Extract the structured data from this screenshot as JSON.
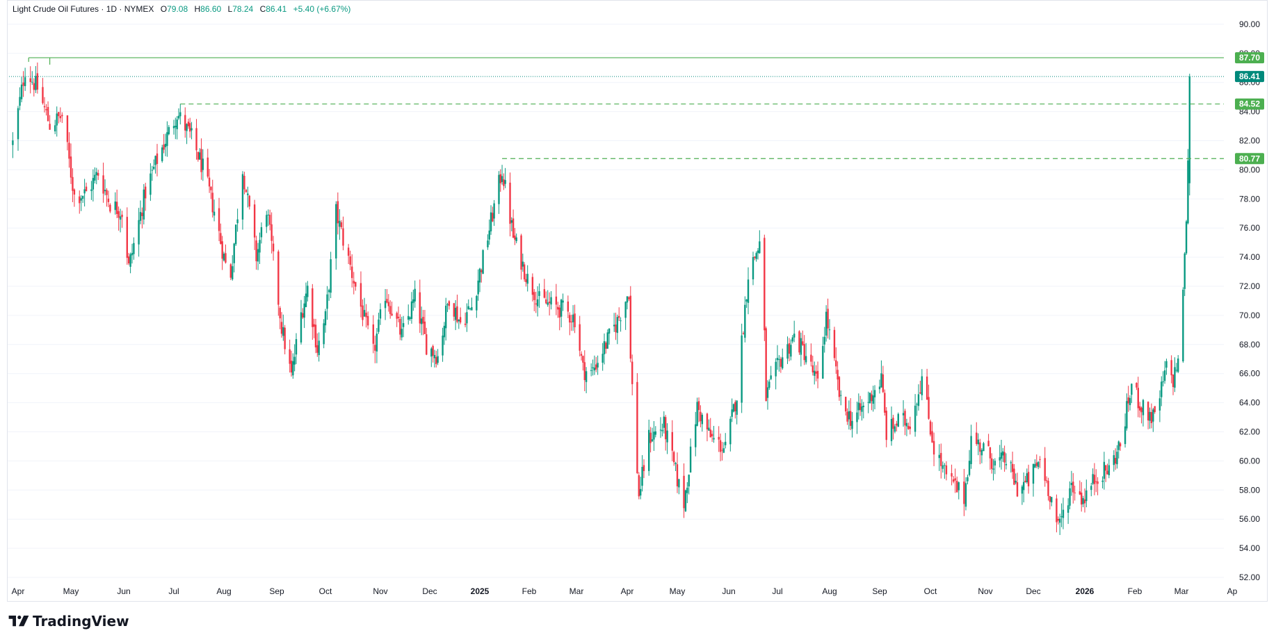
{
  "header": {
    "symbol": "Light Crude Oil Futures · 1D · NYMEX",
    "open_label": "O",
    "open": "79.08",
    "high_label": "H",
    "high": "86.60",
    "low_label": "L",
    "low": "78.24",
    "close_label": "C",
    "close": "86.41",
    "change": "+5.40 (+6.67%)"
  },
  "brand": {
    "name": "TradingView"
  },
  "colors": {
    "up": "#089981",
    "down": "#f23645",
    "level_line": "#4caf50",
    "last_price": "#00897b",
    "grid": "#f0f3fa"
  },
  "chart_data": {
    "type": "candlestick",
    "title": "Light Crude Oil Futures · 1D · NYMEX",
    "ylim": [
      52,
      90
    ],
    "y_ticks": [
      "52.00",
      "54.00",
      "56.00",
      "58.00",
      "60.00",
      "62.00",
      "64.00",
      "66.00",
      "68.00",
      "70.00",
      "72.00",
      "74.00",
      "76.00",
      "78.00",
      "80.00",
      "82.00",
      "84.00",
      "86.00",
      "88.00",
      "90.00"
    ],
    "x_ticks": [
      "Apr",
      "May",
      "Jun",
      "Jul",
      "Aug",
      "Sep",
      "Oct",
      "Nov",
      "Dec",
      "2025",
      "Feb",
      "Mar",
      "Apr",
      "May",
      "Jun",
      "Jul",
      "Aug",
      "Sep",
      "Oct",
      "Nov",
      "Dec",
      "2026",
      "Feb",
      "Mar",
      "Ap"
    ],
    "x_ticks_bold": [
      "2025",
      "2026"
    ],
    "levels": [
      {
        "value": 87.7,
        "label": "87.70",
        "style": "solid",
        "start": "Apr"
      },
      {
        "value": 84.52,
        "label": "84.52",
        "style": "dashed",
        "start": "Jul"
      },
      {
        "value": 80.77,
        "label": "80.77",
        "style": "dashed",
        "start": "2025"
      }
    ],
    "last_price": {
      "value": 86.41,
      "label": "86.41"
    },
    "ohlc_last": {
      "open": 79.08,
      "high": 86.6,
      "low": 78.24,
      "close": 86.41
    },
    "anchors": [
      [
        "Mar 29 2024",
        81.8
      ],
      [
        "Apr 5 2024",
        86.9
      ],
      [
        "Apr 12 2024",
        85.6
      ],
      [
        "Apr 19 2024",
        83.1
      ],
      [
        "Apr 26 2024",
        83.7
      ],
      [
        "May 3 2024",
        78.2
      ],
      [
        "May 10 2024",
        78.4
      ],
      [
        "May 17 2024",
        79.8
      ],
      [
        "May 24 2024",
        77.7
      ],
      [
        "May 31 2024",
        77.1
      ],
      [
        "Jun 4 2024",
        73.3
      ],
      [
        "Jun 14 2024",
        78.5
      ],
      [
        "Jun 21 2024",
        80.7
      ],
      [
        "Jul 3 2024",
        83.9
      ],
      [
        "Jul 12 2024",
        82.2
      ],
      [
        "Jul 19 2024",
        80.1
      ],
      [
        "Jul 26 2024",
        77.2
      ],
      [
        "Aug 2 2024",
        73.5
      ],
      [
        "Aug 5 2024",
        72.9
      ],
      [
        "Aug 12 2024",
        80.1
      ],
      [
        "Aug 20 2024",
        74.0
      ],
      [
        "Aug 26 2024",
        77.4
      ],
      [
        "Sep 4 2024",
        69.2
      ],
      [
        "Sep 10 2024",
        65.8
      ],
      [
        "Sep 16 2024",
        70.1
      ],
      [
        "Sep 20 2024",
        71.9
      ],
      [
        "Sep 26 2024",
        67.7
      ],
      [
        "Oct 1 2024",
        69.8
      ],
      [
        "Oct 7 2024",
        77.1
      ],
      [
        "Oct 14 2024",
        73.8
      ],
      [
        "Oct 21 2024",
        70.6
      ],
      [
        "Oct 28 2024",
        67.4
      ],
      [
        "Nov 4 2024",
        71.5
      ],
      [
        "Nov 8 2024",
        70.4
      ],
      [
        "Nov 14 2024",
        68.6
      ],
      [
        "Nov 22 2024",
        71.2
      ],
      [
        "Nov 29 2024",
        68.0
      ],
      [
        "Dec 6 2024",
        67.2
      ],
      [
        "Dec 13 2024",
        71.3
      ],
      [
        "Dec 20 2024",
        69.5
      ],
      [
        "Dec 27 2024",
        70.6
      ],
      [
        "Jan 3 2025",
        73.9
      ],
      [
        "Jan 15 2025",
        80.0
      ],
      [
        "Jan 22 2025",
        75.4
      ],
      [
        "Jan 31 2025",
        72.5
      ],
      [
        "Feb 7 2025",
        71.0
      ],
      [
        "Feb 14 2025",
        70.7
      ],
      [
        "Feb 21 2025",
        70.4
      ],
      [
        "Feb 28 2025",
        69.8
      ],
      [
        "Mar 5 2025",
        66.3
      ],
      [
        "Mar 10 2025",
        66.0
      ],
      [
        "Mar 17 2025",
        67.6
      ],
      [
        "Mar 26 2025",
        69.6
      ],
      [
        "Apr 2 2025",
        71.7
      ],
      [
        "Apr 3 2025",
        66.9
      ],
      [
        "Apr 8 2025",
        57.6
      ],
      [
        "Apr 14 2025",
        61.6
      ],
      [
        "Apr 23 2025",
        62.4
      ],
      [
        "May 2 2025",
        58.3
      ],
      [
        "May 5 2025",
        57.1
      ],
      [
        "May 13 2025",
        63.7
      ],
      [
        "May 21 2025",
        61.6
      ],
      [
        "May 30 2025",
        60.8
      ],
      [
        "Jun 6 2025",
        64.6
      ],
      [
        "Jun 13 2025",
        72.9
      ],
      [
        "Jun 20 2025",
        74.9
      ],
      [
        "Jun 23 2025",
        68.5
      ],
      [
        "Jun 24 2025",
        64.4
      ],
      [
        "Jul 3 2025",
        67.0
      ],
      [
        "Jul 11 2025",
        68.5
      ],
      [
        "Jul 18 2025",
        67.3
      ],
      [
        "Jul 25 2025",
        65.2
      ],
      [
        "Jul 30 2025",
        70.0
      ],
      [
        "Aug 8 2025",
        63.9
      ],
      [
        "Aug 15 2025",
        62.8
      ],
      [
        "Aug 22 2025",
        63.7
      ],
      [
        "Sep 2 2025",
        65.6
      ],
      [
        "Sep 5 2025",
        61.9
      ],
      [
        "Sep 12 2025",
        62.7
      ],
      [
        "Sep 19 2025",
        62.7
      ],
      [
        "Sep 26 2025",
        65.7
      ],
      [
        "Oct 3 2025",
        60.9
      ],
      [
        "Oct 10 2025",
        58.9
      ],
      [
        "Oct 20 2025",
        57.5
      ],
      [
        "Oct 24 2025",
        61.5
      ],
      [
        "Oct 31 2025",
        60.9
      ],
      [
        "Nov 7 2025",
        59.8
      ],
      [
        "Nov 14 2025",
        60.1
      ],
      [
        "Nov 21 2025",
        58.1
      ],
      [
        "Nov 28 2025",
        58.6
      ],
      [
        "Dec 5 2025",
        60.1
      ],
      [
        "Dec 12 2025",
        57.4
      ],
      [
        "Dec 16 2025",
        55.3
      ],
      [
        "Dec 24 2025",
        58.4
      ],
      [
        "Dec 31 2025",
        57.4
      ],
      [
        "Jan 9 2026",
        59.1
      ],
      [
        "Jan 16 2026",
        59.4
      ],
      [
        "Jan 23 2026",
        61.1
      ],
      [
        "Jan 30 2026",
        65.2
      ],
      [
        "Feb 6 2026",
        63.5
      ],
      [
        "Feb 13 2026",
        62.9
      ],
      [
        "Feb 20 2026",
        66.4
      ],
      [
        "Feb 24 2026",
        65.6
      ],
      [
        "Feb 27 2026",
        67.0
      ],
      [
        "Mar 2 2026",
        71.2
      ],
      [
        "Mar 3 2026",
        74.6
      ],
      [
        "Mar 4 2026",
        76.0
      ],
      [
        "Mar 5 2026",
        81.0
      ],
      [
        "Mar 6 2026",
        86.41
      ]
    ]
  }
}
